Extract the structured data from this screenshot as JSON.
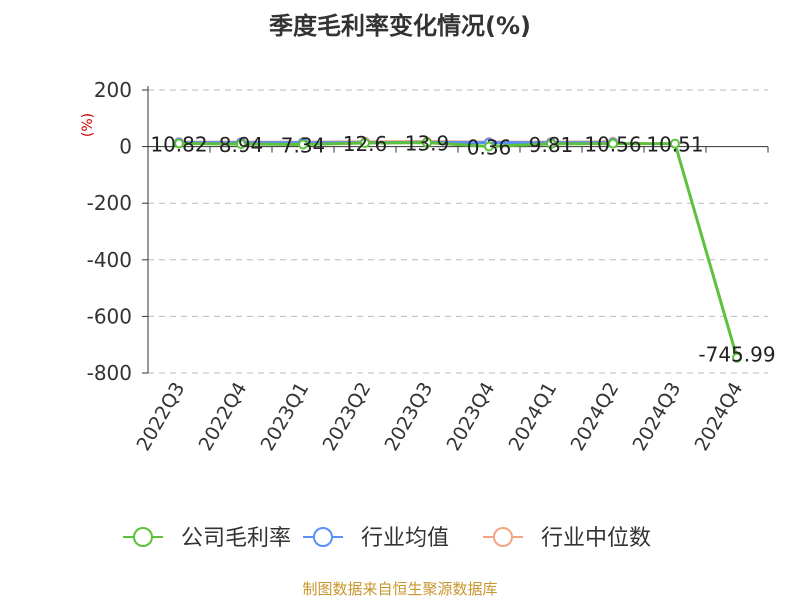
{
  "title": "季度毛利率变化情况(%)",
  "source": "制图数据来自恒生聚源数据库",
  "chart_data": {
    "type": "line",
    "title": "季度毛利率变化情况(%)",
    "ylabel": "(%)",
    "xlabel": "",
    "categories": [
      "2022Q3",
      "2022Q4",
      "2023Q1",
      "2023Q2",
      "2023Q3",
      "2023Q4",
      "2024Q1",
      "2024Q2",
      "2024Q3",
      "2024Q4"
    ],
    "ylim": [
      -800,
      200
    ],
    "yticks": [
      200,
      0,
      -200,
      -400,
      -600,
      -800
    ],
    "grid": "horizontal-dashed",
    "legend_position": "bottom",
    "series": [
      {
        "name": "公司毛利率",
        "color": "#5cc13b",
        "values": [
          10.82,
          8.94,
          7.34,
          12.6,
          13.9,
          0.36,
          9.81,
          10.56,
          10.51,
          -745.99
        ],
        "labels": [
          "10.82",
          "8.94",
          "7.34",
          "12.6",
          "13.9",
          "0.36",
          "9.81",
          "10.56",
          "10.51",
          "-745.99"
        ]
      },
      {
        "name": "行业均值",
        "color": "#5b8ff9",
        "values": [
          14,
          14,
          14,
          14,
          15,
          14,
          14,
          14,
          null,
          null
        ]
      },
      {
        "name": "行业中位数",
        "color": "#f4a582",
        "values": [
          16,
          16,
          16,
          17,
          18,
          16,
          16,
          17,
          null,
          null
        ]
      }
    ]
  }
}
